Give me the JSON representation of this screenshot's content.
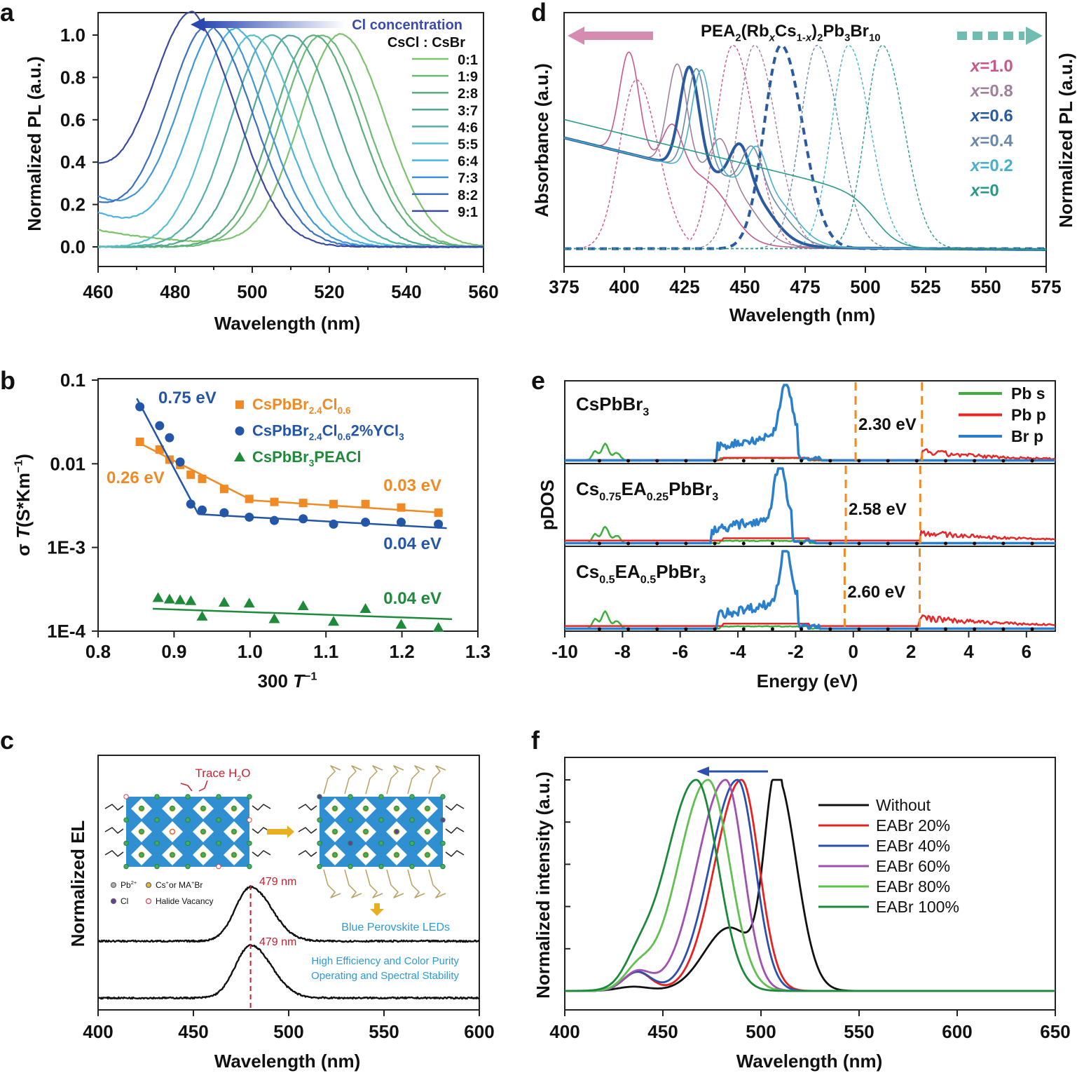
{
  "chart_data": [
    {
      "panel": "a",
      "type": "line",
      "xlabel": "Wavelength (nm)",
      "ylabel": "Normalized PL (a.u.)",
      "xlim": [
        460,
        560
      ],
      "ylim": [
        -0.09,
        1.1
      ],
      "xticks": [
        460,
        480,
        500,
        520,
        540,
        560
      ],
      "yticks": [
        "0.0",
        "0.2",
        "0.4",
        "0.6",
        "0.8",
        "1.0"
      ],
      "arrow_label": "Cl concentration",
      "legend_title": "CsCl : CsBr",
      "legend_placement": "top-right",
      "series": [
        {
          "name": "0:1",
          "peak_nm": 523,
          "value_at_460": 0.08,
          "color": "#7cc36e"
        },
        {
          "name": "1:9",
          "peak_nm": 518,
          "value_at_460": 0.0,
          "color": "#6cba78"
        },
        {
          "name": "2:8",
          "peak_nm": 516,
          "value_at_460": 0.0,
          "color": "#5cae7c"
        },
        {
          "name": "3:7",
          "peak_nm": 510,
          "value_at_460": 0.0,
          "color": "#52a890"
        },
        {
          "name": "4:6",
          "peak_nm": 505,
          "value_at_460": 0.0,
          "color": "#54b0a8"
        },
        {
          "name": "5:5",
          "peak_nm": 500,
          "value_at_460": 0.0,
          "color": "#5ac0cc"
        },
        {
          "name": "6:4",
          "peak_nm": 496,
          "value_at_460": 0.16,
          "color": "#4cb4e0"
        },
        {
          "name": "7:3",
          "peak_nm": 492,
          "value_at_460": 0.23,
          "color": "#3e96d8"
        },
        {
          "name": "8:2",
          "peak_nm": 489,
          "value_at_460": 0.19,
          "color": "#3a70c0"
        },
        {
          "name": "9:1",
          "peak_nm": 485,
          "value_at_460": 0.34,
          "color": "#3a4aa0"
        }
      ]
    },
    {
      "panel": "d",
      "type": "line",
      "title_parts": [
        [
          "PEA",
          ""
        ],
        [
          "2",
          "sub"
        ],
        [
          "(Rb",
          ""
        ],
        [
          "x",
          "subi"
        ],
        [
          "Cs",
          ""
        ],
        [
          "1-",
          "sub"
        ],
        [
          "x",
          "subi"
        ],
        [
          ")",
          ""
        ],
        [
          "2",
          "sub"
        ],
        [
          "Pb",
          ""
        ],
        [
          "3",
          "sub"
        ],
        [
          "Br",
          ""
        ],
        [
          "10",
          "sub"
        ]
      ],
      "xlabel": "Wavelength (nm)",
      "ylabel_left": "Absorbance (a.u.)",
      "ylabel_right": "Normalized PL (a.u.)",
      "xlim": [
        375,
        575
      ],
      "xticks": [
        375,
        400,
        425,
        450,
        475,
        500,
        525,
        550,
        575
      ],
      "legend_placement": "right",
      "series": [
        {
          "name": "x=1.0",
          "var": "x",
          "val": "=1.0",
          "abs_peaks_nm": [
            402,
            420
          ],
          "abs_edge_nm": 445,
          "pl_peaks_nm": [
            405,
            445
          ],
          "color": "#c8588c"
        },
        {
          "name": "x=0.8",
          "var": "x",
          "val": "=0.8",
          "abs_peaks_nm": [
            422,
            440
          ],
          "abs_edge_nm": 455,
          "pl_peaks_nm": [
            454
          ],
          "color": "#a0809c"
        },
        {
          "name": "x=0.6",
          "var": "x",
          "val": "=0.6",
          "abs_peaks_nm": [
            427,
            448
          ],
          "abs_edge_nm": 462,
          "pl_peaks_nm": [
            465
          ],
          "color": "#2a5aa0",
          "bold": true
        },
        {
          "name": "x=0.4",
          "var": "x",
          "val": "=0.4",
          "abs_peaks_nm": [
            430,
            453
          ],
          "abs_edge_nm": 468,
          "pl_peaks_nm": [
            480
          ],
          "color": "#6a88a8"
        },
        {
          "name": "x=0.2",
          "var": "x",
          "val": "=0.2",
          "abs_peaks_nm": [
            432,
            455
          ],
          "abs_edge_nm": 472,
          "pl_peaks_nm": [
            493
          ],
          "color": "#48b0cc"
        },
        {
          "name": "x=0",
          "var": "x",
          "val": "=0",
          "abs_peaks_nm": [],
          "abs_edge_nm": 505,
          "pl_peaks_nm": [
            507
          ],
          "color": "#2a9a88"
        }
      ]
    },
    {
      "panel": "b",
      "type": "scatter",
      "xlabel_parts": [
        [
          "300 ",
          ""
        ],
        [
          "T",
          "i"
        ],
        [
          "−1",
          "sup"
        ]
      ],
      "ylabel_parts": [
        [
          "σ ",
          ""
        ],
        [
          "T",
          "i"
        ],
        [
          "(S*Km",
          ""
        ],
        [
          "−1",
          "sup"
        ],
        [
          ")",
          ""
        ]
      ],
      "xlim": [
        0.8,
        1.3
      ],
      "ylim": [
        0.0001,
        0.1
      ],
      "yscale": "log",
      "xticks": [
        "0.8",
        "0.9",
        "1.0",
        "1.1",
        "1.2",
        "1.3"
      ],
      "yticks": [
        {
          "value": 0.1,
          "label": "0.1"
        },
        {
          "value": 0.01,
          "label": "0.01"
        },
        {
          "value": 0.001,
          "label": "1E-3"
        },
        {
          "value": 0.0001,
          "label": "1E-4"
        }
      ],
      "legend_placement": "top-center",
      "series": [
        {
          "name_parts": [
            [
              "CsPbBr",
              ""
            ],
            [
              "2.4",
              "sub"
            ],
            [
              "Cl",
              ""
            ],
            [
              "0.6",
              "sub"
            ]
          ],
          "marker": "square",
          "color": "#f08a24",
          "x": [
            0.855,
            0.881,
            0.894,
            0.908,
            0.922,
            0.937,
            0.966,
            0.999,
            1.032,
            1.07,
            1.11,
            1.152,
            1.199,
            1.248
          ],
          "y": [
            0.0183,
            0.0148,
            0.0112,
            0.0097,
            0.0074,
            0.0066,
            0.005,
            0.0038,
            0.0035,
            0.0034,
            0.0033,
            0.0033,
            0.003,
            0.0026
          ],
          "fits": [
            {
              "x": [
                0.851,
                0.994
              ],
              "y": [
                0.0183,
                0.004
              ]
            },
            {
              "x": [
                0.994,
                1.254
              ],
              "y": [
                0.0037,
                0.0026
              ]
            }
          ]
        },
        {
          "name_parts": [
            [
              "CsPbBr",
              ""
            ],
            [
              "2.4",
              "sub"
            ],
            [
              "Cl",
              ""
            ],
            [
              "0.6",
              "sub"
            ],
            [
              "2%YCl",
              ""
            ],
            [
              "3",
              "sub"
            ]
          ],
          "marker": "circle",
          "color": "#2456a8",
          "x": [
            0.855,
            0.881,
            0.894,
            0.908,
            0.922,
            0.937,
            0.966,
            0.999,
            1.032,
            1.07,
            1.11,
            1.152,
            1.199,
            1.248
          ],
          "y": [
            0.048,
            0.0285,
            0.0205,
            0.0105,
            0.0033,
            0.0028,
            0.0026,
            0.0023,
            0.0021,
            0.0022,
            0.0019,
            0.002,
            0.002,
            0.0019
          ],
          "fits": [
            {
              "x": [
                0.851,
                0.932
              ],
              "y": [
                0.0604,
                0.0025
              ]
            },
            {
              "x": [
                0.932,
                1.259
              ],
              "y": [
                0.0025,
                0.0017
              ]
            }
          ]
        },
        {
          "name_parts": [
            [
              "CsPbBr",
              ""
            ],
            [
              "3",
              "sub"
            ],
            [
              "PEACl",
              ""
            ]
          ],
          "marker": "triangle",
          "color": "#1e8a3a",
          "x": [
            0.879,
            0.894,
            0.908,
            0.922,
            0.937,
            0.966,
            0.999,
            1.032,
            1.07,
            1.11,
            1.152,
            1.199,
            1.248
          ],
          "y": [
            0.00025,
            0.00024,
            0.000235,
            0.00023,
            0.00015,
            0.00022,
            0.000215,
            0.00014,
            0.0002,
            0.00013,
            0.000185,
            0.00012,
            0.00011
          ],
          "fits": [
            {
              "x": [
                0.872,
                1.266
              ],
              "y": [
                0.000185,
                0.000139
              ]
            }
          ]
        }
      ],
      "annotations": [
        {
          "text": "0.75 eV",
          "color": "#2456a8"
        },
        {
          "text": "0.26 eV",
          "color": "#f08a24"
        },
        {
          "text": "0.03 eV",
          "color": "#f08a24"
        },
        {
          "text": "0.04 eV",
          "color": "#2456a8"
        },
        {
          "text": "0.04 eV",
          "color": "#1e8a3a"
        }
      ]
    },
    {
      "panel": "e",
      "type": "line",
      "xlabel": "Energy (eV)",
      "ylabel": "pDOS",
      "xlim": [
        -10,
        7
      ],
      "xticks": [
        -10,
        -8,
        -6,
        -4,
        -2,
        0,
        2,
        4,
        6
      ],
      "legend_placement": "top-right",
      "series": [
        {
          "name": "Pb s",
          "color": "#3cb03c"
        },
        {
          "name": "Pb p",
          "color": "#e82828"
        },
        {
          "name": "Br p",
          "color": "#2a7fcc"
        }
      ],
      "subpanels": [
        {
          "label_parts": [
            [
              "CsPbBr",
              ""
            ],
            [
              "3",
              "sub"
            ]
          ],
          "vbm_ev": 0.08,
          "cbm_ev": 2.38,
          "gap_label": "2.30 eV",
          "br_peak_ev": -2.4
        },
        {
          "label_parts": [
            [
              "Cs",
              ""
            ],
            [
              "0.75",
              "sub"
            ],
            [
              "EA",
              ""
            ],
            [
              "0.25",
              "sub"
            ],
            [
              "PbBr",
              ""
            ],
            [
              "3",
              "sub"
            ]
          ],
          "vbm_ev": -0.26,
          "cbm_ev": 2.32,
          "gap_label": "2.58 eV",
          "br_peak_ev": -2.6
        },
        {
          "label_parts": [
            [
              "Cs",
              ""
            ],
            [
              "0.5",
              "sub"
            ],
            [
              "EA",
              ""
            ],
            [
              "0.5",
              "sub"
            ],
            [
              "PbBr",
              ""
            ],
            [
              "3",
              "sub"
            ]
          ],
          "vbm_ev": -0.3,
          "cbm_ev": 2.3,
          "gap_label": "2.60 eV",
          "br_peak_ev": -2.4
        }
      ],
      "gap_line_color": "#f08a24"
    },
    {
      "panel": "c",
      "type": "line",
      "xlabel": "Wavelength (nm)",
      "ylabel": "Normalized EL",
      "xlim": [
        400,
        600
      ],
      "xticks": [
        400,
        450,
        500,
        550,
        600
      ],
      "series": [
        {
          "peak_nm": 479,
          "peak_label": "479 nm"
        },
        {
          "peak_nm": 479,
          "peak_label": "479 nm"
        }
      ],
      "inset": {
        "trace_label_parts": [
          [
            "Trace H",
            ""
          ],
          [
            "2",
            "sub"
          ],
          [
            "O",
            ""
          ]
        ],
        "legend": [
          {
            "label_parts": [
              [
                "Pb",
                ""
              ],
              [
                "2+",
                "sup"
              ]
            ],
            "color": "#b0b0b0",
            "kind": "dot"
          },
          {
            "label_parts": [
              [
                "Cs",
                ""
              ],
              [
                "+",
                "sup"
              ],
              [
                "or MA",
                ""
              ],
              [
                "+",
                "sup"
              ],
              [
                "Br",
                ""
              ]
            ],
            "color": "#e8b830",
            "kind": "dot"
          },
          {
            "label_parts": [
              [
                "Cl",
                ""
              ]
            ],
            "color": "#6a3aa0",
            "kind": "dot"
          },
          {
            "label_parts": [
              [
                "Halide Vacancy",
                ""
              ]
            ],
            "color": "#e04050",
            "kind": "ring"
          }
        ],
        "result_label": "Blue Perovskite LEDs",
        "benefits": [
          "High Efficiency and Color Purity",
          "Operating and Spectral Stability"
        ],
        "accent": "#2a9ad8",
        "warn": "#c82030"
      }
    },
    {
      "panel": "f",
      "type": "line",
      "xlabel": "Wavelength (nm)",
      "ylabel": "Normalized intensity (a.u.)",
      "xlim": [
        400,
        650
      ],
      "xticks": [
        400,
        450,
        500,
        550,
        600,
        650
      ],
      "legend_placement": "right",
      "series": [
        {
          "name": "Without",
          "peak_nm": 508,
          "color": "#111111"
        },
        {
          "name": "EABr 20%",
          "peak_nm": 490,
          "color": "#e82020"
        },
        {
          "name": "EABr 40%",
          "peak_nm": 488,
          "color": "#2a50b0"
        },
        {
          "name": "EABr 60%",
          "peak_nm": 482,
          "color": "#a050b0"
        },
        {
          "name": "EABr 80%",
          "peak_nm": 473,
          "color": "#60c050"
        },
        {
          "name": "EABr 100%",
          "peak_nm": 467,
          "color": "#1a8a3a"
        }
      ],
      "arrow_color": "#2a50b0"
    }
  ]
}
